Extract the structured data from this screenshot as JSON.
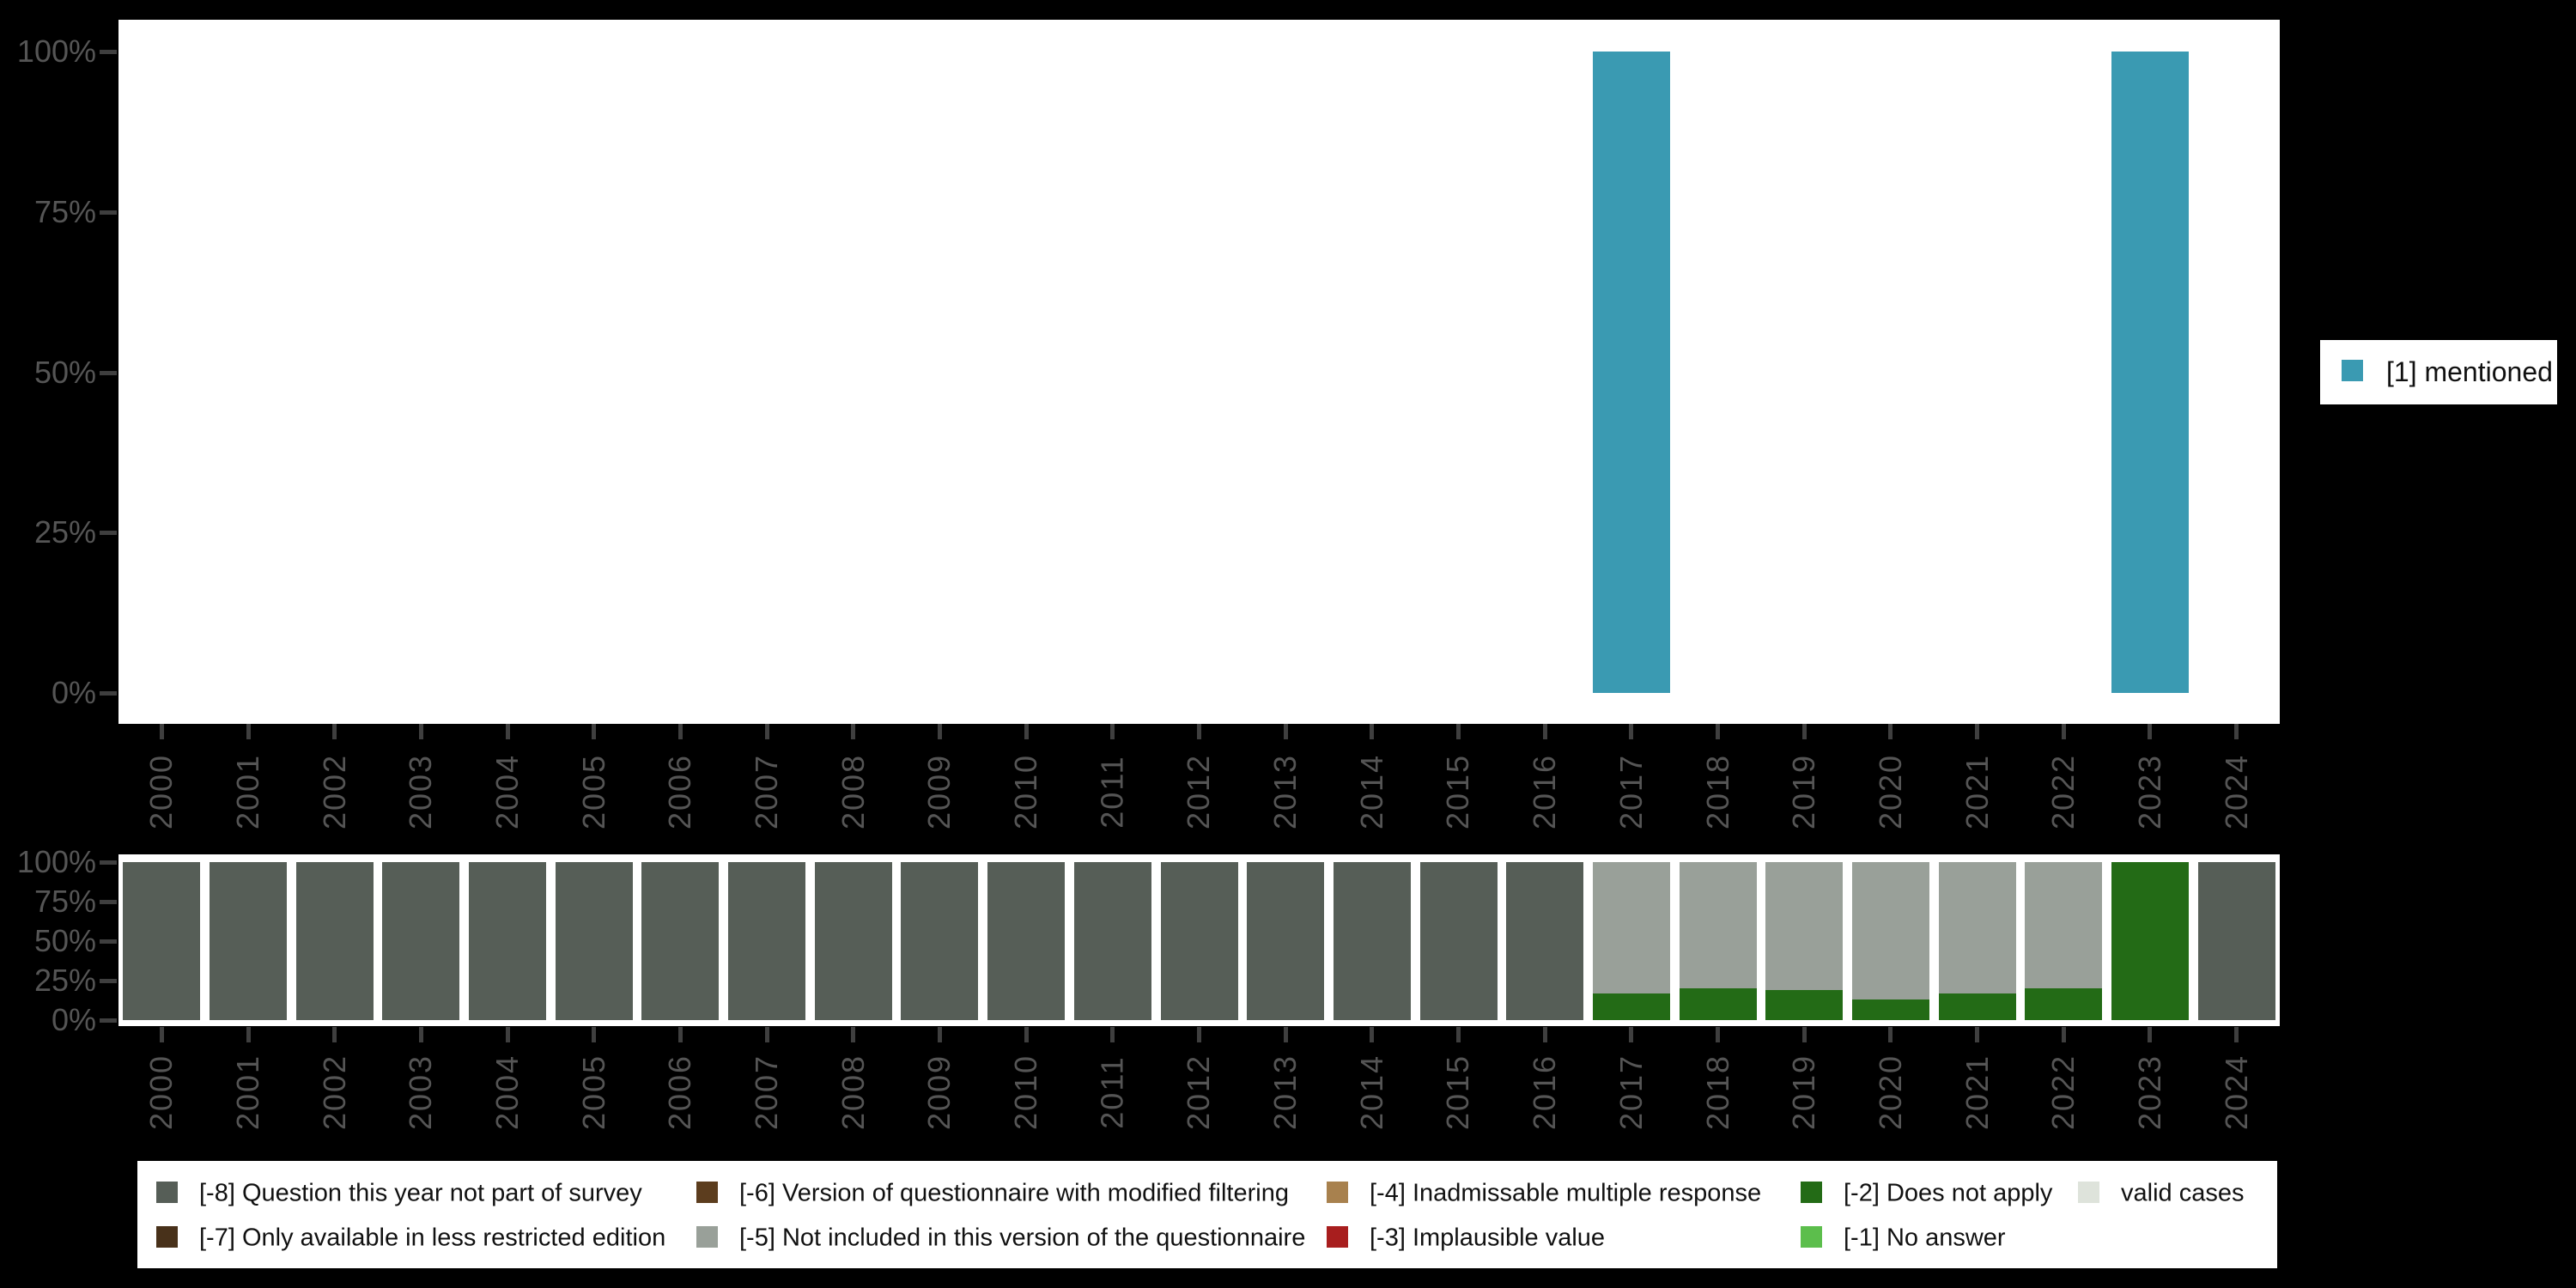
{
  "colors": {
    "background": "#000000",
    "panel": "#ffffff",
    "axis_label": "#555555",
    "axis_tick": "#3f3f3f",
    "legend_text": "#111111",
    "mentioned": "#3a9ab2",
    "m8": "#565e57",
    "m7": "#48311a",
    "m6": "#5c3d1e",
    "m5": "#99a099",
    "m4": "#a8814e",
    "m3": "#a81e1e",
    "m2": "#236b16",
    "m1": "#5cbe4c",
    "valid": "#dee3db"
  },
  "y_axis_ticks": [
    "100%",
    "75%",
    "50%",
    "25%",
    "0%"
  ],
  "chart_data": [
    {
      "type": "bar",
      "title": "",
      "xlabel": "",
      "ylabel": "",
      "ylim": [
        0,
        100
      ],
      "grid": false,
      "legend_position": "right",
      "categories": [
        "2000",
        "2001",
        "2002",
        "2003",
        "2004",
        "2005",
        "2006",
        "2007",
        "2008",
        "2009",
        "2010",
        "2011",
        "2012",
        "2013",
        "2014",
        "2015",
        "2016",
        "2017",
        "2018",
        "2019",
        "2020",
        "2021",
        "2022",
        "2023",
        "2024"
      ],
      "series": [
        {
          "name": "[1] mentioned",
          "color": "mentioned",
          "values": [
            0,
            0,
            0,
            0,
            0,
            0,
            0,
            0,
            0,
            0,
            0,
            0,
            0,
            0,
            0,
            0,
            0,
            100,
            0,
            0,
            0,
            0,
            0,
            100,
            0
          ]
        }
      ]
    },
    {
      "type": "bar",
      "stacked": true,
      "title": "",
      "xlabel": "",
      "ylabel": "",
      "ylim": [
        0,
        100
      ],
      "grid": false,
      "legend_position": "bottom",
      "categories": [
        "2000",
        "2001",
        "2002",
        "2003",
        "2004",
        "2005",
        "2006",
        "2007",
        "2008",
        "2009",
        "2010",
        "2011",
        "2012",
        "2013",
        "2014",
        "2015",
        "2016",
        "2017",
        "2018",
        "2019",
        "2020",
        "2021",
        "2022",
        "2023",
        "2024"
      ],
      "series": [
        {
          "name": "[-2] Does not apply",
          "color": "m2",
          "values": [
            0,
            0,
            0,
            0,
            0,
            0,
            0,
            0,
            0,
            0,
            0,
            0,
            0,
            0,
            0,
            0,
            0,
            17,
            20,
            19,
            13,
            17,
            20,
            100,
            0
          ]
        },
        {
          "name": "[-5] Not included in this version of the questionnaire",
          "color": "m5",
          "values": [
            0,
            0,
            0,
            0,
            0,
            0,
            0,
            0,
            0,
            0,
            0,
            0,
            0,
            0,
            0,
            0,
            0,
            83,
            80,
            81,
            87,
            83,
            80,
            0,
            0
          ]
        },
        {
          "name": "[-8] Question this year not part of survey",
          "color": "m8",
          "values": [
            100,
            100,
            100,
            100,
            100,
            100,
            100,
            100,
            100,
            100,
            100,
            100,
            100,
            100,
            100,
            100,
            100,
            0,
            0,
            0,
            0,
            0,
            0,
            0,
            100
          ]
        }
      ]
    }
  ],
  "legend_top": {
    "items": [
      {
        "label": "[1] mentioned",
        "color": "mentioned"
      }
    ]
  },
  "legend_bottom": {
    "columns": [
      {
        "items": [
          {
            "label": "[-8] Question this year not part of survey",
            "color": "m8"
          },
          {
            "label": "[-7] Only available in less restricted edition",
            "color": "m7"
          }
        ]
      },
      {
        "items": [
          {
            "label": "[-6] Version of questionnaire with modified filtering",
            "color": "m6"
          },
          {
            "label": "[-5] Not included in this version of the questionnaire",
            "color": "m5"
          }
        ]
      },
      {
        "items": [
          {
            "label": "[-4] Inadmissable multiple response",
            "color": "m4"
          },
          {
            "label": "[-3] Implausible value",
            "color": "m3"
          }
        ]
      },
      {
        "items": [
          {
            "label": "[-2] Does not apply",
            "color": "m2"
          },
          {
            "label": "[-1] No answer",
            "color": "m1"
          }
        ]
      },
      {
        "items": [
          {
            "label": "valid cases",
            "color": "valid"
          }
        ]
      }
    ]
  }
}
